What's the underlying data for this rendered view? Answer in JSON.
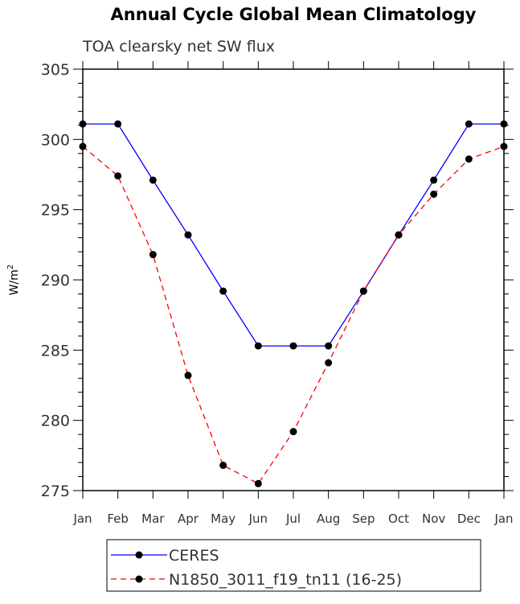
{
  "chart_data": {
    "type": "line",
    "title": "Annual Cycle Global Mean Climatology",
    "subtitle": "TOA clearsky net SW flux",
    "xlabel": "",
    "ylabel": "W/m",
    "ylabel_sup": "2",
    "ylim": [
      275,
      305
    ],
    "yticks": [
      275,
      280,
      285,
      290,
      295,
      300,
      305
    ],
    "categories": [
      "Jan",
      "Feb",
      "Mar",
      "Apr",
      "May",
      "Jun",
      "Jul",
      "Aug",
      "Sep",
      "Oct",
      "Nov",
      "Dec",
      "Jan"
    ],
    "grid": false,
    "legend_position": "bottom",
    "series": [
      {
        "name": "CERES",
        "color": "#0000ff",
        "dash": false,
        "values": [
          301.1,
          301.1,
          297.1,
          293.2,
          289.2,
          285.3,
          285.3,
          285.3,
          289.2,
          293.2,
          297.1,
          301.1,
          301.1
        ]
      },
      {
        "name": "N1850_3011_f19_tn11 (16-25)",
        "color": "#ff0000",
        "dash": true,
        "values": [
          299.5,
          297.4,
          291.8,
          283.2,
          276.8,
          275.5,
          279.2,
          284.1,
          289.2,
          293.2,
          296.1,
          298.6,
          299.5
        ]
      }
    ]
  }
}
